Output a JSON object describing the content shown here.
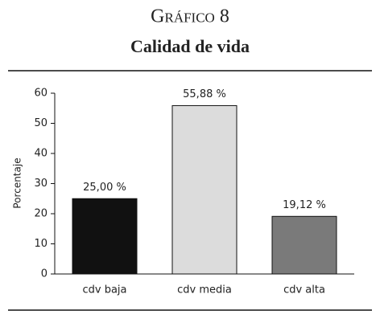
{
  "chart_data": {
    "type": "bar",
    "title": "Gráfico 8",
    "subtitle": "Calidad de vida",
    "y_label": "Porcentaje",
    "categories": [
      "cdv baja",
      "cdv media",
      "cdv alta"
    ],
    "values": [
      25,
      55.88,
      19.12
    ],
    "value_labels": [
      "25,00 %",
      "55,88 %",
      "19,12 %"
    ],
    "colors": [
      "#111111",
      "#dcdcdc",
      "#7a7a7a"
    ],
    "ylim": [
      0,
      60
    ],
    "yticks": [
      0,
      10,
      20,
      30,
      40,
      50,
      60
    ],
    "grid": false
  }
}
